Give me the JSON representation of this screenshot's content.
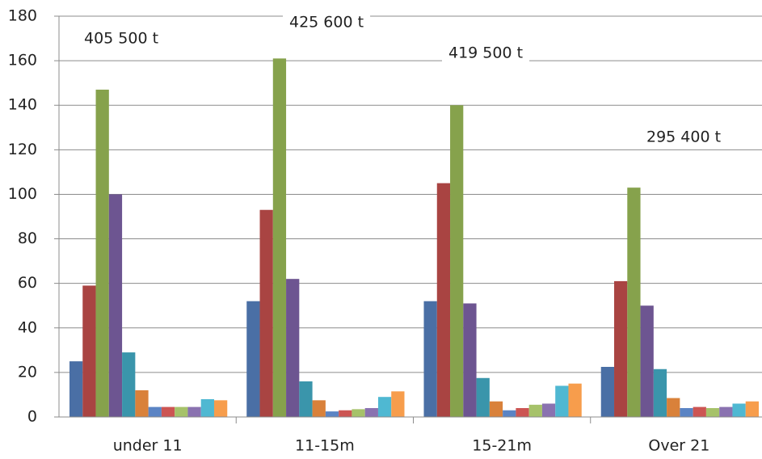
{
  "chart_data": {
    "type": "bar",
    "categories": [
      "under 11",
      "11-15m",
      "15-21m",
      "Over 21"
    ],
    "series": [
      {
        "color": "#4a6fa5",
        "values": [
          25,
          52,
          52,
          22.5
        ]
      },
      {
        "color": "#a94442",
        "values": [
          59,
          93,
          105,
          61
        ]
      },
      {
        "color": "#86a24c",
        "values": [
          147,
          161,
          140,
          103
        ]
      },
      {
        "color": "#6d5591",
        "values": [
          100,
          62,
          51,
          50
        ]
      },
      {
        "color": "#3a95ab",
        "values": [
          29,
          16,
          17.5,
          21.5
        ]
      },
      {
        "color": "#d9813a",
        "values": [
          12,
          7.5,
          7,
          8.5
        ]
      },
      {
        "color": "#5b84c4",
        "values": [
          4.5,
          2.5,
          3,
          4
        ]
      },
      {
        "color": "#cc5553",
        "values": [
          4.5,
          3,
          4,
          4.5
        ]
      },
      {
        "color": "#a6c26a",
        "values": [
          4.5,
          3.5,
          5.5,
          4
        ]
      },
      {
        "color": "#8a72b0",
        "values": [
          4.5,
          4,
          6,
          4.5
        ]
      },
      {
        "color": "#4fb8d2",
        "values": [
          8,
          9,
          14,
          6
        ]
      },
      {
        "color": "#f79d4c",
        "values": [
          7.5,
          11.5,
          15,
          7
        ]
      }
    ],
    "annotations": [
      "405 500 t",
      "425 600 t",
      "419 500 t",
      "295 400 t"
    ],
    "ylim": [
      0,
      180
    ],
    "yticks": [
      0,
      20,
      40,
      60,
      80,
      100,
      120,
      140,
      160,
      180
    ],
    "grid": true
  }
}
